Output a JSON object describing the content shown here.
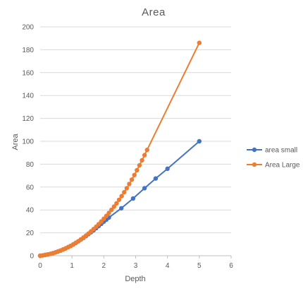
{
  "chart_data": {
    "type": "scatter",
    "title": "Area",
    "xlabel": "Depth",
    "ylabel": "Area",
    "xlim": [
      0,
      6
    ],
    "ylim": [
      0,
      200
    ],
    "x_ticks": [
      0,
      1,
      2,
      3,
      4,
      5,
      6
    ],
    "y_ticks": [
      0,
      20,
      40,
      60,
      80,
      100,
      120,
      140,
      160,
      180,
      200
    ],
    "grid": "horizontal",
    "legend_position": "right",
    "series": [
      {
        "name": "area small",
        "color": "#4472C4",
        "points": [
          [
            0.0,
            0.0
          ],
          [
            0.08,
            0.3
          ],
          [
            0.16,
            0.7
          ],
          [
            0.24,
            1.1
          ],
          [
            0.32,
            1.6
          ],
          [
            0.4,
            2.2
          ],
          [
            0.48,
            2.9
          ],
          [
            0.56,
            3.7
          ],
          [
            0.64,
            4.5
          ],
          [
            0.72,
            5.4
          ],
          [
            0.8,
            6.4
          ],
          [
            0.88,
            7.5
          ],
          [
            0.96,
            8.6
          ],
          [
            1.04,
            9.9
          ],
          [
            1.12,
            11.2
          ],
          [
            1.2,
            12.6
          ],
          [
            1.28,
            14.1
          ],
          [
            1.36,
            15.6
          ],
          [
            1.44,
            17.2
          ],
          [
            1.52,
            18.9
          ],
          [
            1.6,
            20.6
          ],
          [
            1.68,
            22.3
          ],
          [
            1.76,
            24.1
          ],
          [
            1.84,
            26.0
          ],
          [
            1.92,
            27.9
          ],
          [
            2.0,
            29.8
          ],
          [
            2.08,
            31.6
          ],
          [
            2.16,
            33.4
          ],
          [
            2.55,
            41.5
          ],
          [
            2.92,
            50.0
          ],
          [
            3.28,
            59.0
          ],
          [
            3.63,
            67.5
          ],
          [
            4.0,
            76.0
          ],
          [
            5.0,
            100.0
          ]
        ]
      },
      {
        "name": "Area Large",
        "color": "#ED7D31",
        "points": [
          [
            0.0,
            0.0
          ],
          [
            0.08,
            0.3
          ],
          [
            0.16,
            0.7
          ],
          [
            0.24,
            1.1
          ],
          [
            0.32,
            1.6
          ],
          [
            0.4,
            2.2
          ],
          [
            0.48,
            2.9
          ],
          [
            0.56,
            3.7
          ],
          [
            0.64,
            4.5
          ],
          [
            0.72,
            5.4
          ],
          [
            0.8,
            6.4
          ],
          [
            0.88,
            7.5
          ],
          [
            0.96,
            8.6
          ],
          [
            1.04,
            9.9
          ],
          [
            1.12,
            11.3
          ],
          [
            1.2,
            12.7
          ],
          [
            1.28,
            14.3
          ],
          [
            1.36,
            15.9
          ],
          [
            1.44,
            17.6
          ],
          [
            1.52,
            19.4
          ],
          [
            1.6,
            21.3
          ],
          [
            1.68,
            23.3
          ],
          [
            1.76,
            25.4
          ],
          [
            1.84,
            27.6
          ],
          [
            1.92,
            29.9
          ],
          [
            2.0,
            32.3
          ],
          [
            2.08,
            34.8
          ],
          [
            2.16,
            37.4
          ],
          [
            2.24,
            40.1
          ],
          [
            2.32,
            42.9
          ],
          [
            2.4,
            45.8
          ],
          [
            2.48,
            48.9
          ],
          [
            2.56,
            52.1
          ],
          [
            2.64,
            55.5
          ],
          [
            2.72,
            59.0
          ],
          [
            2.8,
            62.7
          ],
          [
            2.88,
            66.5
          ],
          [
            2.96,
            70.5
          ],
          [
            3.04,
            74.7
          ],
          [
            3.12,
            79.0
          ],
          [
            3.2,
            83.4
          ],
          [
            3.28,
            87.9
          ],
          [
            3.36,
            92.5
          ],
          [
            5.0,
            186.0
          ]
        ]
      }
    ]
  }
}
